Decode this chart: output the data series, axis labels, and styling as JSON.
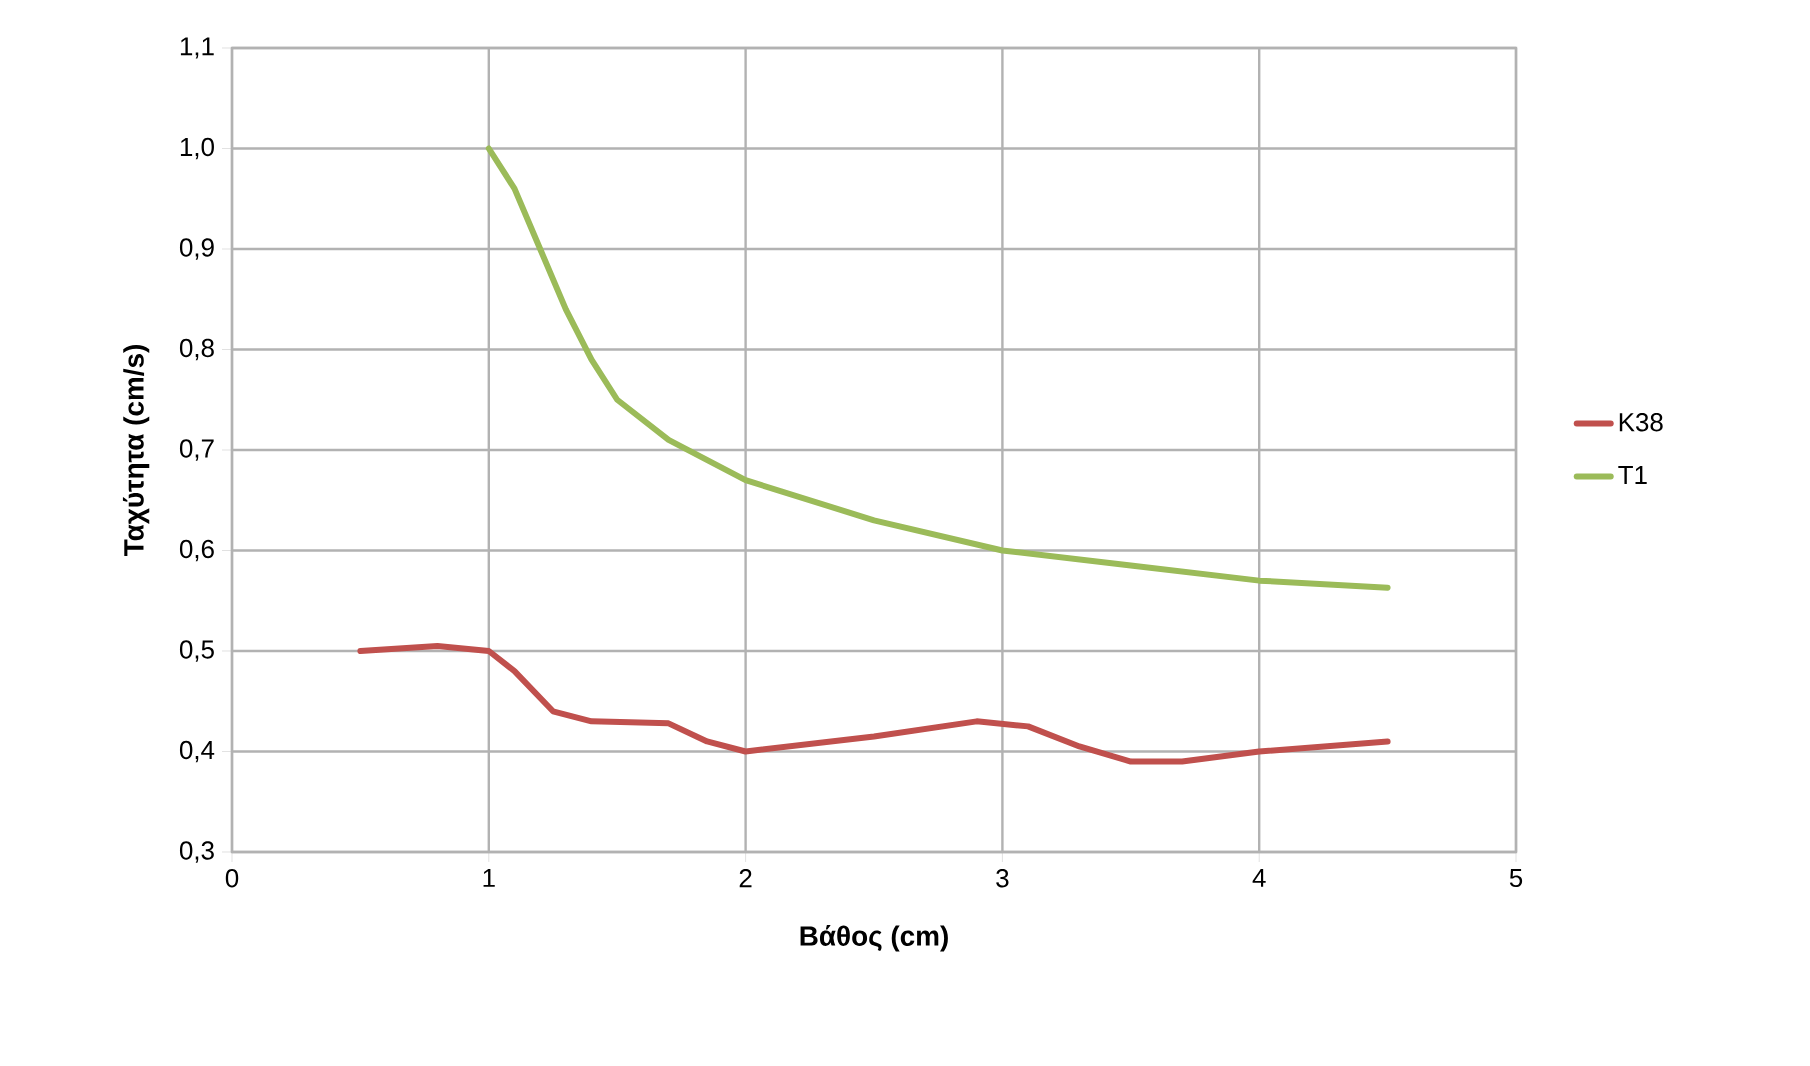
{
  "chart_data": {
    "type": "line",
    "xlabel": "Βάθος (cm)",
    "ylabel": "Ταχύτητα (cm/s)",
    "xlim": [
      0,
      5
    ],
    "ylim": [
      0.3,
      1.1
    ],
    "xticks": [
      0,
      1,
      2,
      3,
      4,
      5
    ],
    "yticks": [
      {
        "value": 0.3,
        "label": "0,3"
      },
      {
        "value": 0.4,
        "label": "0,4"
      },
      {
        "value": 0.5,
        "label": "0,5"
      },
      {
        "value": 0.6,
        "label": "0,6"
      },
      {
        "value": 0.7,
        "label": "0,7"
      },
      {
        "value": 0.8,
        "label": "0,8"
      },
      {
        "value": 0.9,
        "label": "0,9"
      },
      {
        "value": 1.0,
        "label": "1,0"
      },
      {
        "value": 1.1,
        "label": "1,1"
      }
    ],
    "grid": true,
    "legend": "right",
    "marker": "none",
    "line_style": "solid",
    "series": [
      {
        "name": "K38",
        "color": "#c0504d",
        "x": [
          0.5,
          0.8,
          1.0,
          1.1,
          1.25,
          1.4,
          1.7,
          1.85,
          2.0,
          2.5,
          2.9,
          3.1,
          3.3,
          3.5,
          3.7,
          4.0,
          4.5
        ],
        "values": [
          0.5,
          0.505,
          0.5,
          0.48,
          0.44,
          0.43,
          0.428,
          0.41,
          0.4,
          0.415,
          0.43,
          0.425,
          0.405,
          0.39,
          0.39,
          0.4,
          0.41
        ]
      },
      {
        "name": "T1",
        "color": "#9bbb59",
        "x": [
          1.0,
          1.1,
          1.2,
          1.3,
          1.4,
          1.5,
          1.7,
          2.0,
          2.5,
          3.0,
          3.5,
          4.0,
          4.5
        ],
        "values": [
          1.0,
          0.96,
          0.9,
          0.84,
          0.79,
          0.75,
          0.71,
          0.67,
          0.63,
          0.6,
          0.585,
          0.57,
          0.563
        ]
      }
    ]
  }
}
